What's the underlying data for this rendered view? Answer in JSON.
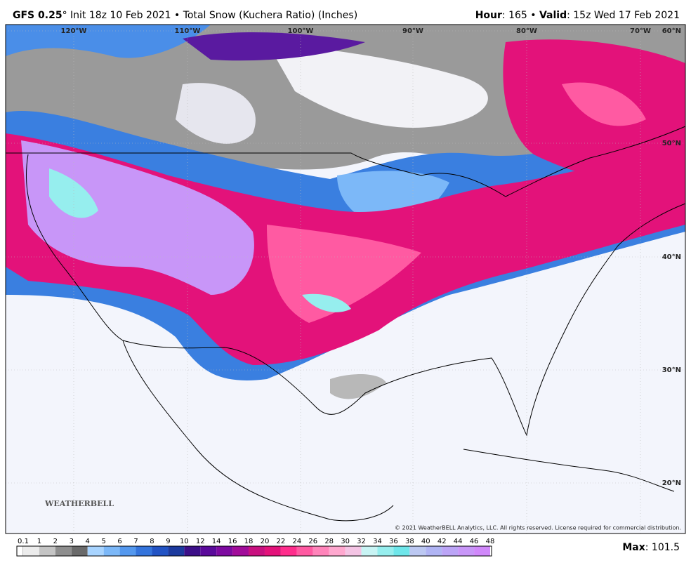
{
  "header": {
    "model": "GFS 0.25",
    "description": "° Init 18z 10 Feb 2021 • Total Snow (Kuchera Ratio) (Inches)",
    "hour_label": "Hour",
    "hour_value": ": 165 • ",
    "valid_label": "Valid",
    "valid_value": ": 15z Wed 17 Feb 2021"
  },
  "map": {
    "longitudes": [
      "120°W",
      "110°W",
      "100°W",
      "90°W",
      "80°W",
      "70°W"
    ],
    "latitudes": [
      "60°N",
      "50°N",
      "40°N",
      "30°N",
      "20°N"
    ],
    "logo": "WEATHERBELL",
    "copyright": "© 2021 WeatherBELL Analytics, LLC. All rights reserved. License required for commercial distribution."
  },
  "colorbar": {
    "levels": [
      0.1,
      1,
      2,
      3,
      4,
      5,
      6,
      7,
      8,
      9,
      10,
      12,
      14,
      16,
      18,
      20,
      22,
      24,
      26,
      28,
      30,
      32,
      34,
      36,
      38,
      40,
      42,
      44,
      46,
      48
    ],
    "colors": [
      "#ececec",
      "#c4c4c4",
      "#8e8e8e",
      "#6a6a6a",
      "#a8d4ff",
      "#7cb8f8",
      "#5498ee",
      "#3474dc",
      "#2253c4",
      "#1c3a9e",
      "#3c0f88",
      "#5a0a9a",
      "#7d0aa0",
      "#a10c9a",
      "#c8107f",
      "#e3127a",
      "#ff2d8c",
      "#ff5aa2",
      "#ff84ba",
      "#ffa8cf",
      "#f4c4e4",
      "#c8f4f4",
      "#96eeee",
      "#6ee6ea",
      "#bcc8f2",
      "#b0b4f4",
      "#bba4f6",
      "#c896f8",
      "#d088fa"
    ]
  },
  "footer": {
    "max_label": "Max",
    "max_value": ": 101.5"
  }
}
